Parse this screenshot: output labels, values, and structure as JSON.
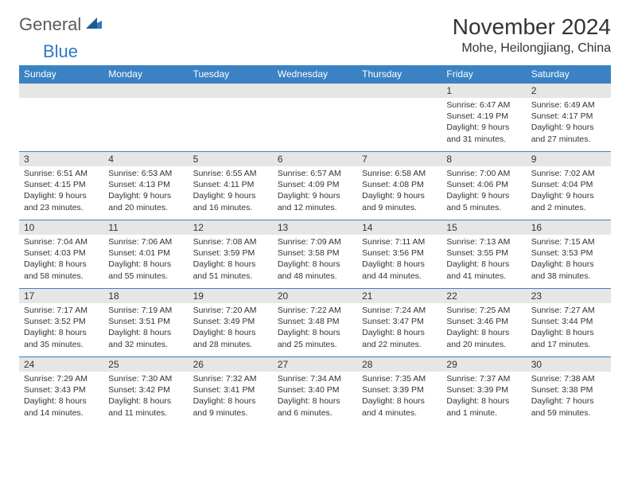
{
  "logo": {
    "part1": "General",
    "part2": "Blue"
  },
  "title": "November 2024",
  "location": "Mohe, Heilongjiang, China",
  "colors": {
    "header_bg": "#3a82c4",
    "header_text": "#ffffff",
    "daynum_bg": "#e6e6e6",
    "border": "#3a82c4",
    "logo_gray": "#5a5a5a",
    "logo_blue": "#2f78c2",
    "text": "#333333",
    "page_bg": "#ffffff"
  },
  "typography": {
    "title_fontsize": 28,
    "location_fontsize": 16,
    "dayheader_fontsize": 12,
    "daynum_fontsize": 12,
    "body_fontsize": 10.5
  },
  "day_headers": [
    "Sunday",
    "Monday",
    "Tuesday",
    "Wednesday",
    "Thursday",
    "Friday",
    "Saturday"
  ],
  "weeks": [
    [
      null,
      null,
      null,
      null,
      null,
      {
        "n": "1",
        "sunrise": "Sunrise: 6:47 AM",
        "sunset": "Sunset: 4:19 PM",
        "daylight": "Daylight: 9 hours and 31 minutes."
      },
      {
        "n": "2",
        "sunrise": "Sunrise: 6:49 AM",
        "sunset": "Sunset: 4:17 PM",
        "daylight": "Daylight: 9 hours and 27 minutes."
      }
    ],
    [
      {
        "n": "3",
        "sunrise": "Sunrise: 6:51 AM",
        "sunset": "Sunset: 4:15 PM",
        "daylight": "Daylight: 9 hours and 23 minutes."
      },
      {
        "n": "4",
        "sunrise": "Sunrise: 6:53 AM",
        "sunset": "Sunset: 4:13 PM",
        "daylight": "Daylight: 9 hours and 20 minutes."
      },
      {
        "n": "5",
        "sunrise": "Sunrise: 6:55 AM",
        "sunset": "Sunset: 4:11 PM",
        "daylight": "Daylight: 9 hours and 16 minutes."
      },
      {
        "n": "6",
        "sunrise": "Sunrise: 6:57 AM",
        "sunset": "Sunset: 4:09 PM",
        "daylight": "Daylight: 9 hours and 12 minutes."
      },
      {
        "n": "7",
        "sunrise": "Sunrise: 6:58 AM",
        "sunset": "Sunset: 4:08 PM",
        "daylight": "Daylight: 9 hours and 9 minutes."
      },
      {
        "n": "8",
        "sunrise": "Sunrise: 7:00 AM",
        "sunset": "Sunset: 4:06 PM",
        "daylight": "Daylight: 9 hours and 5 minutes."
      },
      {
        "n": "9",
        "sunrise": "Sunrise: 7:02 AM",
        "sunset": "Sunset: 4:04 PM",
        "daylight": "Daylight: 9 hours and 2 minutes."
      }
    ],
    [
      {
        "n": "10",
        "sunrise": "Sunrise: 7:04 AM",
        "sunset": "Sunset: 4:03 PM",
        "daylight": "Daylight: 8 hours and 58 minutes."
      },
      {
        "n": "11",
        "sunrise": "Sunrise: 7:06 AM",
        "sunset": "Sunset: 4:01 PM",
        "daylight": "Daylight: 8 hours and 55 minutes."
      },
      {
        "n": "12",
        "sunrise": "Sunrise: 7:08 AM",
        "sunset": "Sunset: 3:59 PM",
        "daylight": "Daylight: 8 hours and 51 minutes."
      },
      {
        "n": "13",
        "sunrise": "Sunrise: 7:09 AM",
        "sunset": "Sunset: 3:58 PM",
        "daylight": "Daylight: 8 hours and 48 minutes."
      },
      {
        "n": "14",
        "sunrise": "Sunrise: 7:11 AM",
        "sunset": "Sunset: 3:56 PM",
        "daylight": "Daylight: 8 hours and 44 minutes."
      },
      {
        "n": "15",
        "sunrise": "Sunrise: 7:13 AM",
        "sunset": "Sunset: 3:55 PM",
        "daylight": "Daylight: 8 hours and 41 minutes."
      },
      {
        "n": "16",
        "sunrise": "Sunrise: 7:15 AM",
        "sunset": "Sunset: 3:53 PM",
        "daylight": "Daylight: 8 hours and 38 minutes."
      }
    ],
    [
      {
        "n": "17",
        "sunrise": "Sunrise: 7:17 AM",
        "sunset": "Sunset: 3:52 PM",
        "daylight": "Daylight: 8 hours and 35 minutes."
      },
      {
        "n": "18",
        "sunrise": "Sunrise: 7:19 AM",
        "sunset": "Sunset: 3:51 PM",
        "daylight": "Daylight: 8 hours and 32 minutes."
      },
      {
        "n": "19",
        "sunrise": "Sunrise: 7:20 AM",
        "sunset": "Sunset: 3:49 PM",
        "daylight": "Daylight: 8 hours and 28 minutes."
      },
      {
        "n": "20",
        "sunrise": "Sunrise: 7:22 AM",
        "sunset": "Sunset: 3:48 PM",
        "daylight": "Daylight: 8 hours and 25 minutes."
      },
      {
        "n": "21",
        "sunrise": "Sunrise: 7:24 AM",
        "sunset": "Sunset: 3:47 PM",
        "daylight": "Daylight: 8 hours and 22 minutes."
      },
      {
        "n": "22",
        "sunrise": "Sunrise: 7:25 AM",
        "sunset": "Sunset: 3:46 PM",
        "daylight": "Daylight: 8 hours and 20 minutes."
      },
      {
        "n": "23",
        "sunrise": "Sunrise: 7:27 AM",
        "sunset": "Sunset: 3:44 PM",
        "daylight": "Daylight: 8 hours and 17 minutes."
      }
    ],
    [
      {
        "n": "24",
        "sunrise": "Sunrise: 7:29 AM",
        "sunset": "Sunset: 3:43 PM",
        "daylight": "Daylight: 8 hours and 14 minutes."
      },
      {
        "n": "25",
        "sunrise": "Sunrise: 7:30 AM",
        "sunset": "Sunset: 3:42 PM",
        "daylight": "Daylight: 8 hours and 11 minutes."
      },
      {
        "n": "26",
        "sunrise": "Sunrise: 7:32 AM",
        "sunset": "Sunset: 3:41 PM",
        "daylight": "Daylight: 8 hours and 9 minutes."
      },
      {
        "n": "27",
        "sunrise": "Sunrise: 7:34 AM",
        "sunset": "Sunset: 3:40 PM",
        "daylight": "Daylight: 8 hours and 6 minutes."
      },
      {
        "n": "28",
        "sunrise": "Sunrise: 7:35 AM",
        "sunset": "Sunset: 3:39 PM",
        "daylight": "Daylight: 8 hours and 4 minutes."
      },
      {
        "n": "29",
        "sunrise": "Sunrise: 7:37 AM",
        "sunset": "Sunset: 3:39 PM",
        "daylight": "Daylight: 8 hours and 1 minute."
      },
      {
        "n": "30",
        "sunrise": "Sunrise: 7:38 AM",
        "sunset": "Sunset: 3:38 PM",
        "daylight": "Daylight: 7 hours and 59 minutes."
      }
    ]
  ]
}
